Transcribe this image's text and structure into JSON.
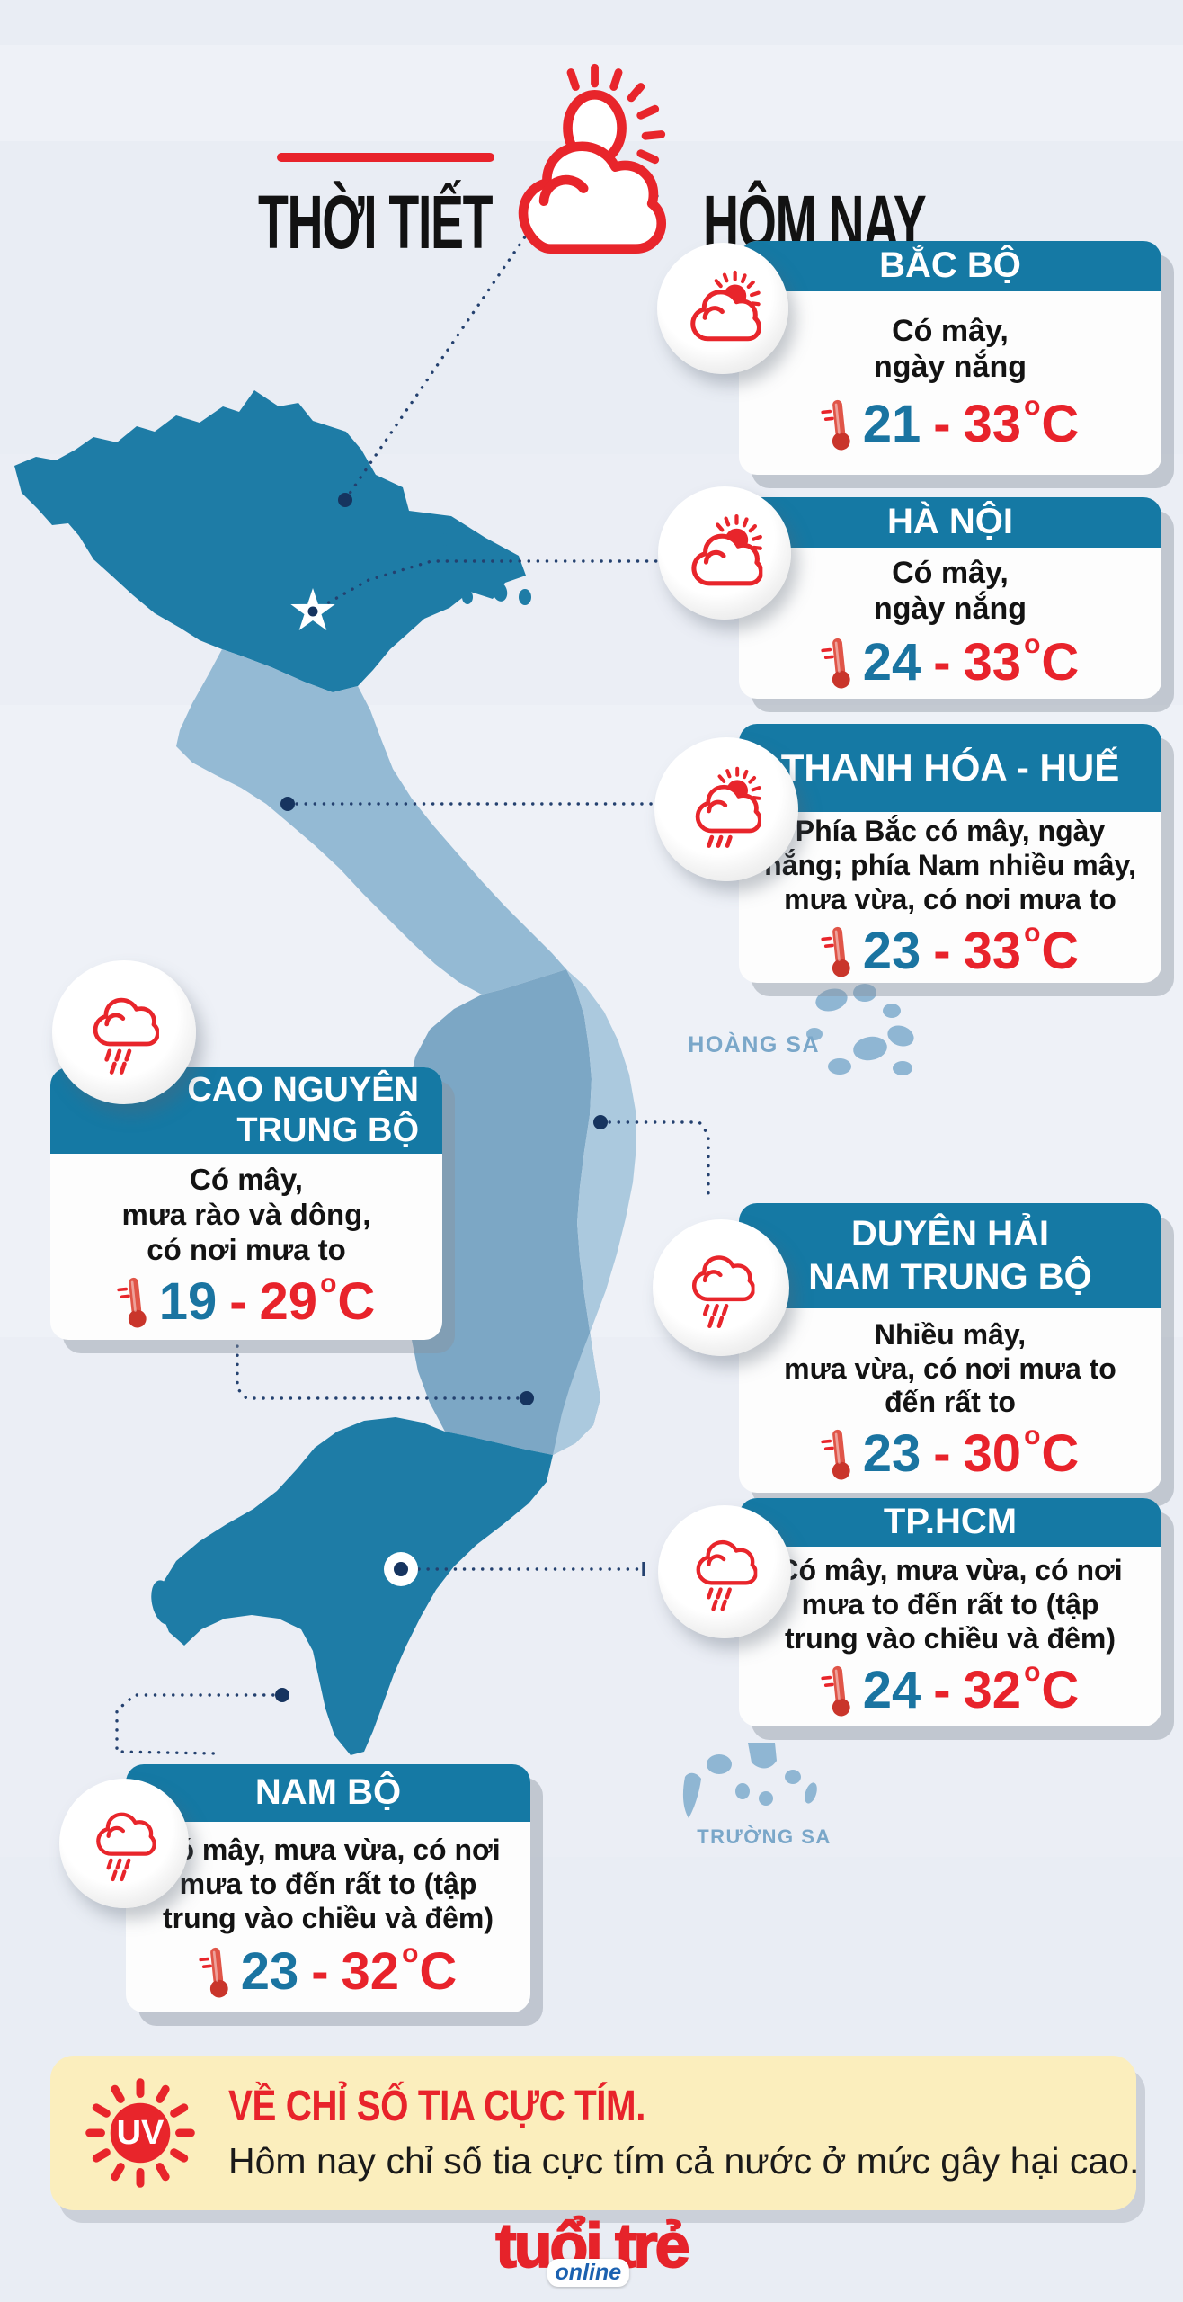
{
  "header": {
    "title_left": "THỜI TIẾT",
    "title_right": "HÔM NAY"
  },
  "cards": [
    {
      "icon": "sun-cloud",
      "region": "BẮC BỘ",
      "desc": "Có mây,\nngày nắng",
      "temp_low": "21",
      "temp_high": "33"
    },
    {
      "icon": "sun-cloud",
      "region": "HÀ NỘI",
      "desc": "Có mây,\nngày nắng",
      "temp_low": "24",
      "temp_high": "33"
    },
    {
      "icon": "sun-cloud-rain",
      "region": "THANH HÓA - HUẾ",
      "desc": "Phía Bắc có mây, ngày\nnắng; phía Nam nhiều mây,\nmưa vừa, có nơi mưa to",
      "temp_low": "23",
      "temp_high": "33"
    },
    {
      "icon": "rain-cloud",
      "region": "CAO NGUYÊN\nTRUNG BỘ",
      "desc": "Có mây,\nmưa rào và dông,\ncó nơi mưa to",
      "temp_low": "19",
      "temp_high": "29"
    },
    {
      "icon": "rain-cloud",
      "region": "DUYÊN HẢI\nNAM TRUNG BỘ",
      "desc": "Nhiều mây,\nmưa vừa, có nơi mưa to\nđến rất to",
      "temp_low": "23",
      "temp_high": "30"
    },
    {
      "icon": "rain-cloud",
      "region": "TP.HCM",
      "desc": "Có mây, mưa vừa, có nơi\nmưa to đến rất to (tập\ntrung vào chiều và đêm)",
      "temp_low": "24",
      "temp_high": "32"
    },
    {
      "icon": "rain-cloud",
      "region": "NAM BỘ",
      "desc": "Có mây, mưa vừa, có nơi\nmưa to đến rất to (tập\ntrung vào chiều và đêm)",
      "temp_low": "23",
      "temp_high": "32"
    }
  ],
  "temp_format": {
    "separator": "-",
    "degree": "o",
    "unit": "C"
  },
  "map": {
    "labels": [
      {
        "text": "HOÀNG SA"
      },
      {
        "text": "TRƯỜNG SA"
      }
    ]
  },
  "uv": {
    "icon": "uv-sun",
    "icon_label": "UV",
    "title": "VỀ CHỈ SỐ TIA CỰC TÍM.",
    "text": "Hôm nay chỉ số tia cực tím cả nước ở mức gây hại cao."
  },
  "footer": {
    "logo_main": "tuổi trẻ",
    "logo_sub": "online"
  },
  "colors": {
    "accent_red": "#e8232b",
    "header_blue": "#1579a4",
    "map_dark": "#1e7ca6",
    "map_panhandle": "#94bad4",
    "map_highlands": "#7ca7c5",
    "map_coast": "#abc9de",
    "islands": "#8fb6d3",
    "temp_low_blue": "#1a74a1",
    "uv_bg": "#fbeebd"
  }
}
